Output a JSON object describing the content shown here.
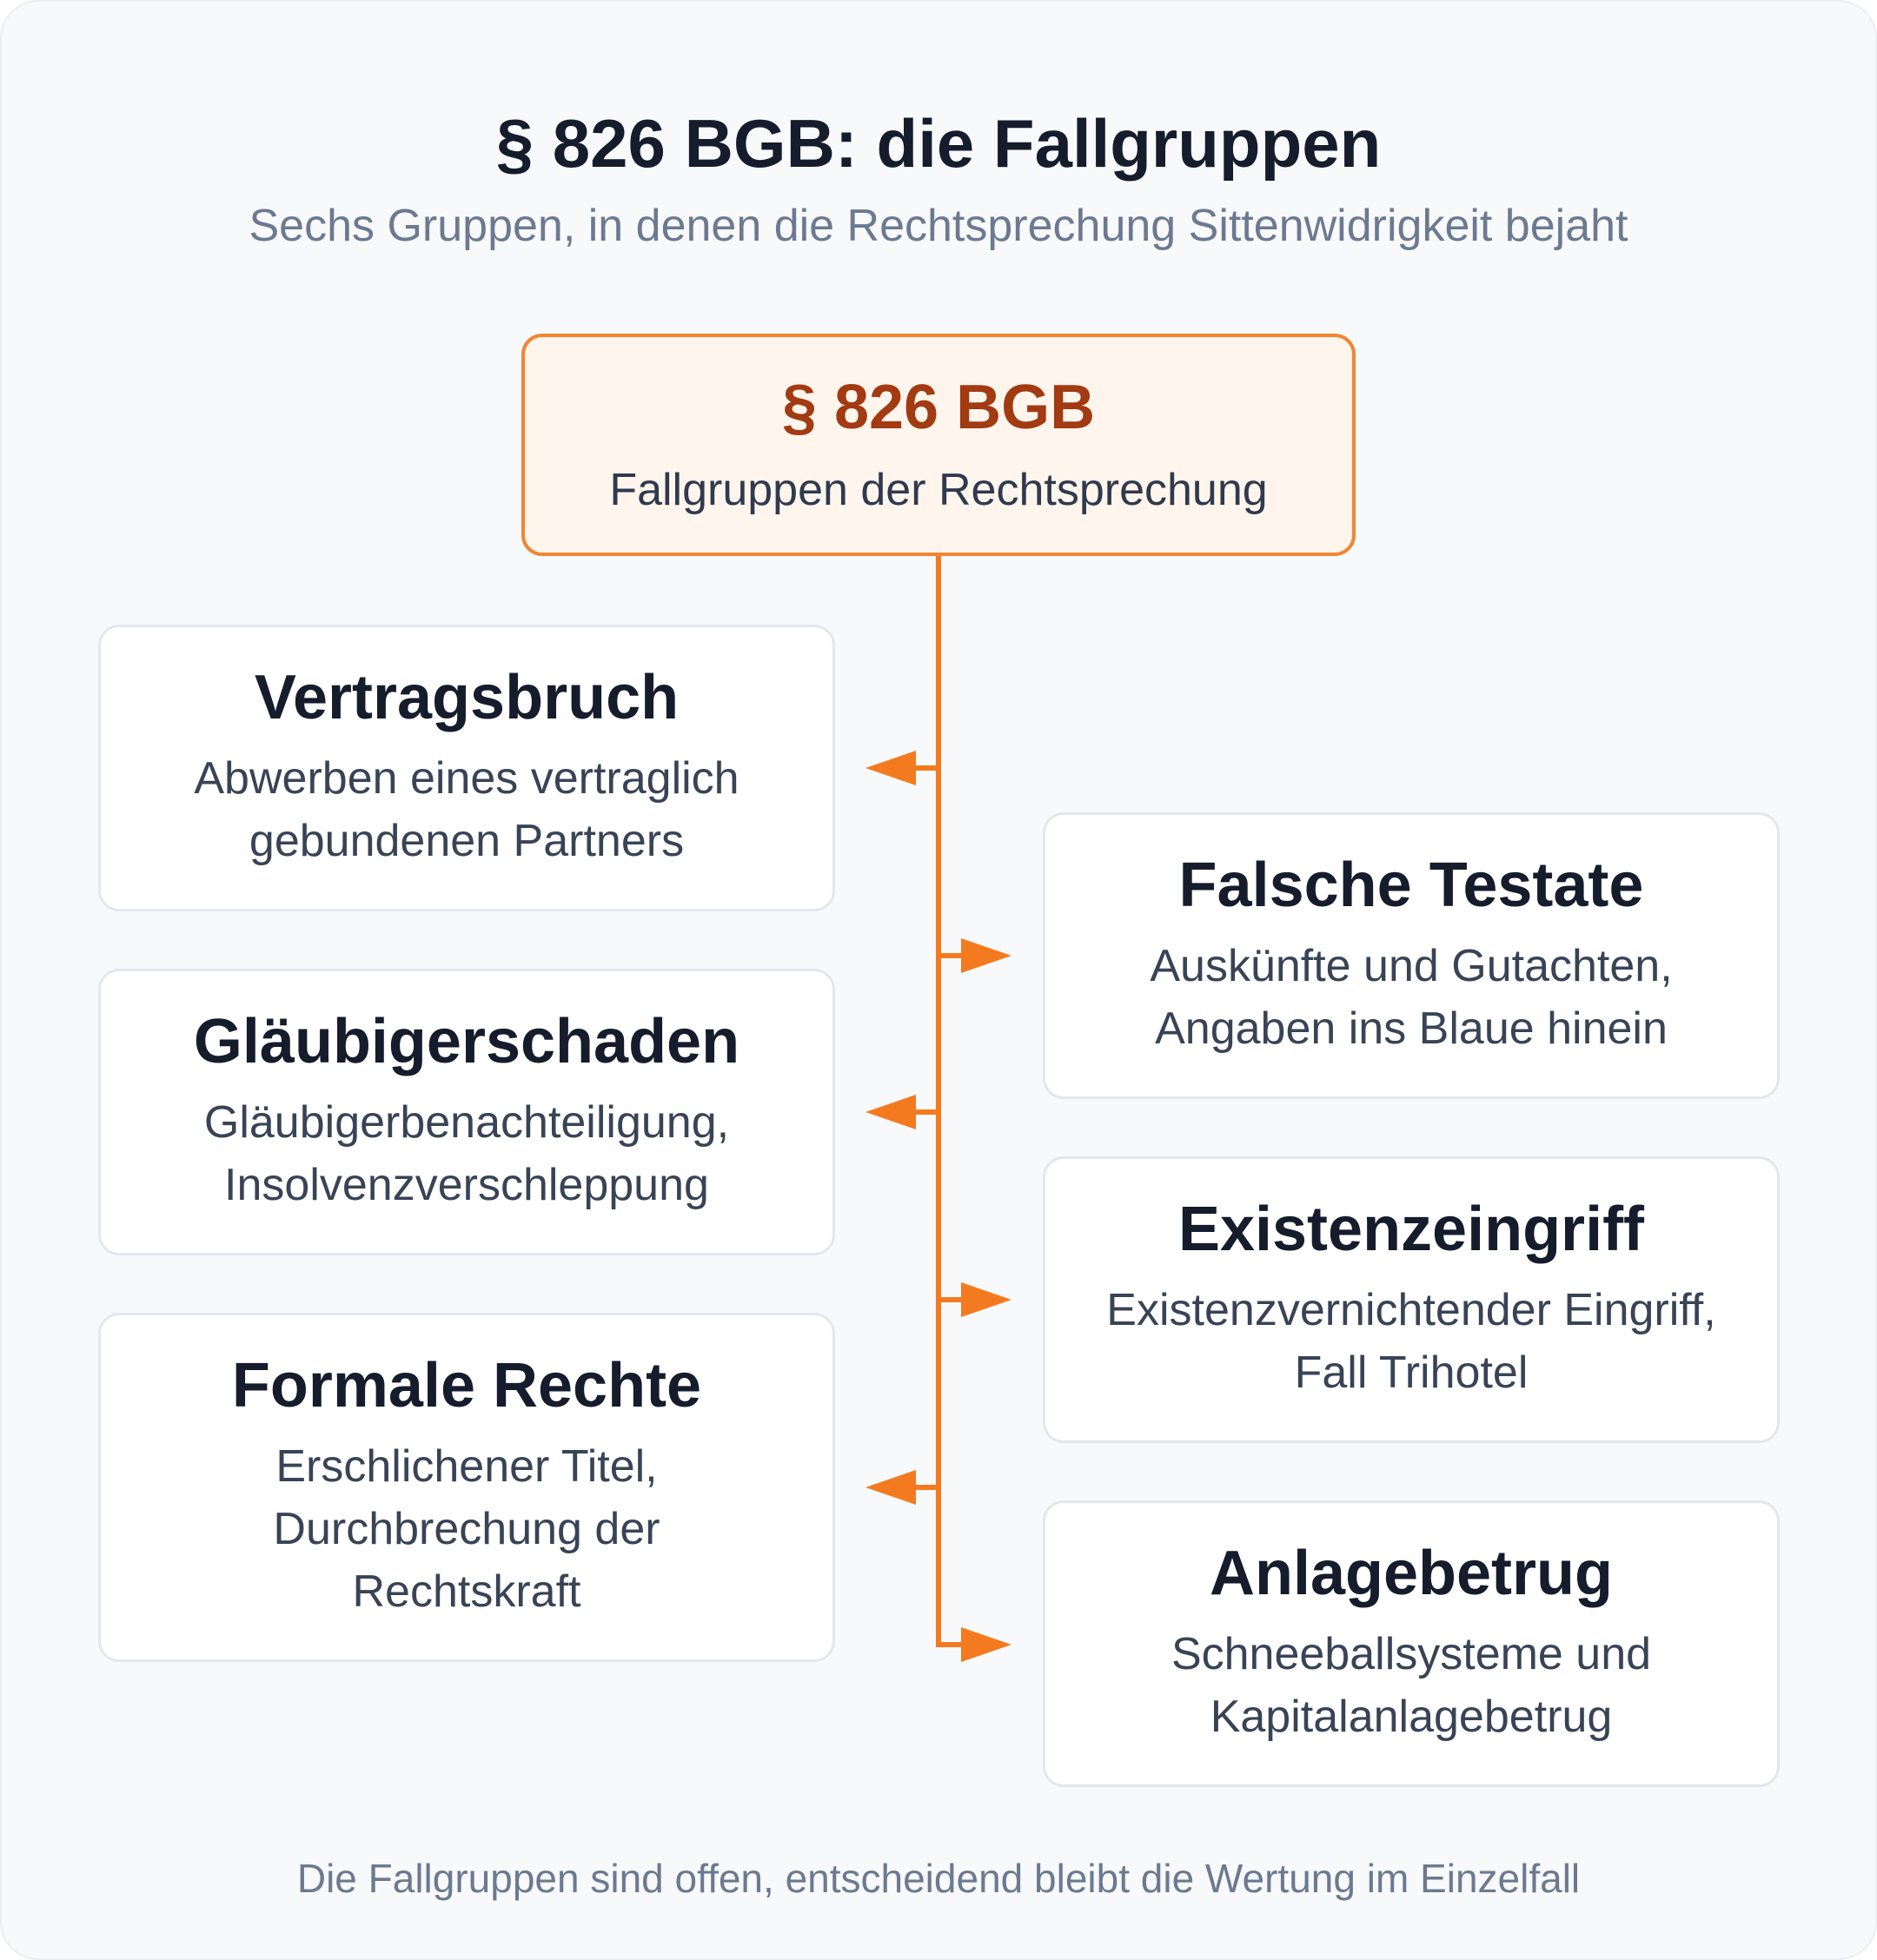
{
  "title": "§ 826 BGB: die Fallgruppen",
  "subtitle": "Sechs Gruppen, in denen die Rechtsprechung Sittenwidrigkeit bejaht",
  "root": {
    "title": "§ 826 BGB",
    "subtitle": "Fallgruppen der Rechtsprechung"
  },
  "groups": [
    {
      "title": "Vertragsbruch",
      "description": "Abwerben eines vertraglich gebundenen Partners"
    },
    {
      "title": "Falsche Testate",
      "description": "Auskünfte und Gutachten, Angaben ins Blaue hinein"
    },
    {
      "title": "Gläubigerschaden",
      "description": "Gläubigerbenachteiligung, Insolvenzverschleppung"
    },
    {
      "title": "Existenzeingriff",
      "description": "Existenzvernichtender Eingriff, Fall Trihotel"
    },
    {
      "title": "Formale Rechte",
      "description": "Erschlichener Titel, Durchbrechung der Rechtskraft"
    },
    {
      "title": "Anlagebetrug",
      "description": "Schneeballsysteme und Kapitalanlagebetrug"
    }
  ],
  "footer": "Die Fallgruppen sind offen, entscheidend bleibt die Wertung im Einzelfall",
  "colors": {
    "accent": "#f47a20",
    "root_fill": "#fff5ed",
    "root_title": "#a23a12",
    "card_border": "#e4e7ec"
  }
}
